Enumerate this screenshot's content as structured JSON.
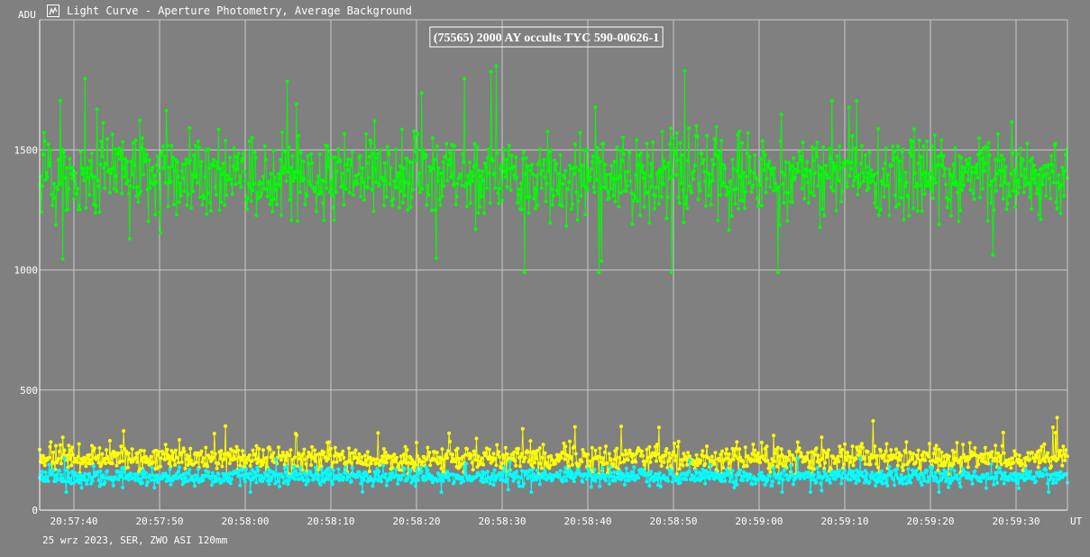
{
  "window": {
    "title": "Light Curve - Aperture Photometry, Average Background",
    "icon": "light-curve-app-icon"
  },
  "footer": "25 wrz 2023, SER, ZWO ASI 120mm",
  "chart_data": {
    "type": "line",
    "title": "(75565) 2000 AY occults TYC 590-00626-1",
    "ylabel": "ADU",
    "xlabel": "UT",
    "ylim": [
      0,
      2000
    ],
    "y_ticks": [
      0,
      500,
      1000,
      1500
    ],
    "x_range": [
      "20:57:36",
      "20:59:36"
    ],
    "x_tick_labels": [
      "20:57:40",
      "20:57:50",
      "20:58:00",
      "20:58:10",
      "20:58:20",
      "20:58:30",
      "20:58:40",
      "20:58:50",
      "20:59:00",
      "20:59:10",
      "20:59:20",
      "20:59:30"
    ],
    "grid": true,
    "colors": {
      "background": "#808080",
      "grid": "#c8c8c8",
      "axis": "#ffffff"
    },
    "series": [
      {
        "color": "#00ff00",
        "mean": 1390,
        "spread": 85,
        "min": 990,
        "max": 1850,
        "samples_per_sec": 10
      },
      {
        "color": "#ffff00",
        "mean": 215,
        "spread": 28,
        "min": 150,
        "max": 385,
        "samples_per_sec": 10
      },
      {
        "color": "#00ffff",
        "mean": 140,
        "spread": 18,
        "min": 75,
        "max": 215,
        "samples_per_sec": 10
      }
    ]
  }
}
